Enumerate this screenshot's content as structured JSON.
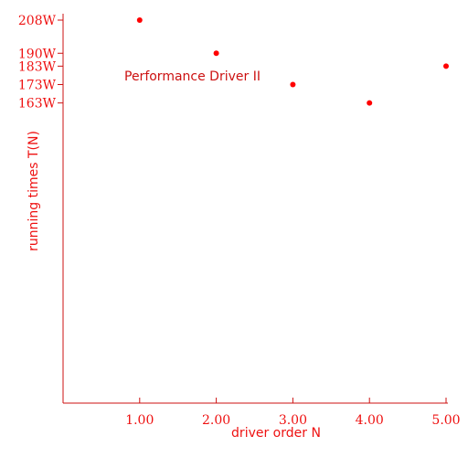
{
  "chart_data": {
    "type": "scatter",
    "title": "",
    "xlabel": "driver order N",
    "ylabel": "running times T(N)",
    "annotation": "Performance Driver II",
    "x_ticks": [
      "1.00",
      "2.00",
      "3.00",
      "4.00",
      "5.00"
    ],
    "y_ticks": [
      {
        "value": 208,
        "label": "208W"
      },
      {
        "value": 190,
        "label": "190W"
      },
      {
        "value": 183,
        "label": "183W"
      },
      {
        "value": 173,
        "label": "173W"
      },
      {
        "value": 163,
        "label": "163W"
      }
    ],
    "x": [
      1,
      2,
      3,
      4,
      5
    ],
    "y": [
      208,
      190,
      173,
      163,
      183
    ],
    "xlim": [
      0,
      5
    ],
    "ylim": [
      0,
      208
    ],
    "grid": false,
    "colors": {
      "axis": "#cc1111",
      "points": "#ff0000",
      "text": "#ee1111"
    }
  }
}
